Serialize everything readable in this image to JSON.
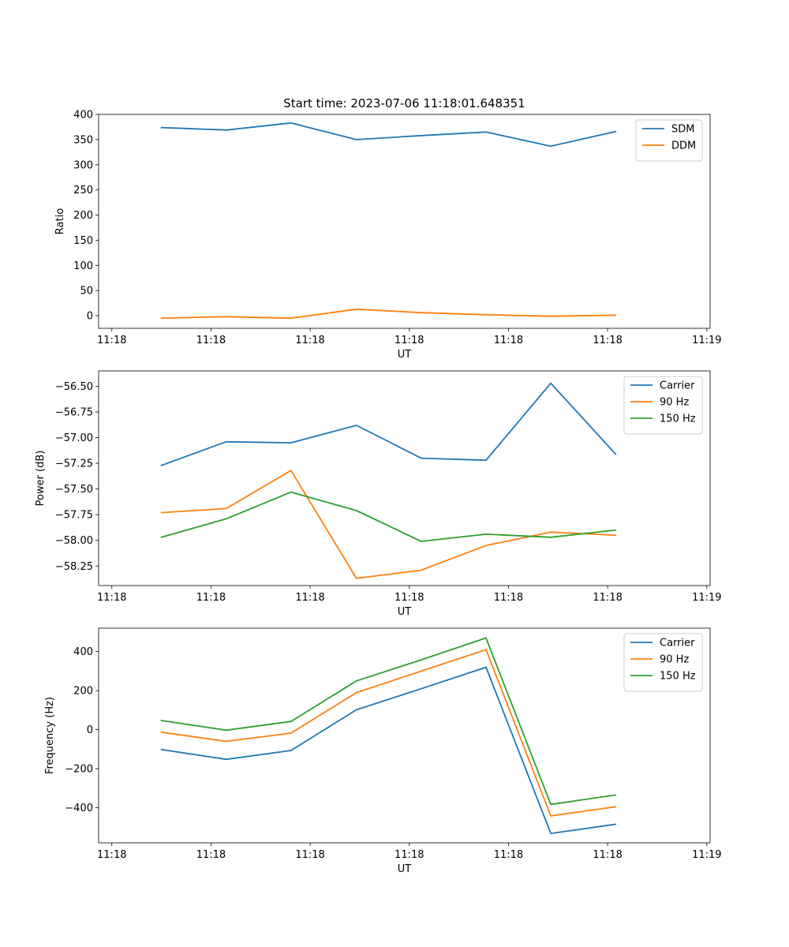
{
  "figure_title": "Start time: 2023-07-06 11:18:01.648351",
  "colors": {
    "blue": "#1f77b4",
    "orange": "#ff7f0e",
    "green": "#2ca02c",
    "frame": "#000000"
  },
  "chart_data": [
    {
      "type": "line",
      "title": "Start time: 2023-07-06 11:18:01.648351",
      "xlabel": "UT",
      "ylabel": "Ratio",
      "xlim": [
        -0.2,
        9.05
      ],
      "ylim": [
        -25,
        400
      ],
      "xticks": [
        {
          "v": 0,
          "label": "11:18"
        },
        {
          "v": 1.5,
          "label": "11:18"
        },
        {
          "v": 3,
          "label": "11:18"
        },
        {
          "v": 4.5,
          "label": "11:18"
        },
        {
          "v": 6,
          "label": "11:18"
        },
        {
          "v": 7.5,
          "label": "11:18"
        },
        {
          "v": 9,
          "label": "11:19"
        }
      ],
      "yticks": [
        {
          "v": 0,
          "label": "0"
        },
        {
          "v": 50,
          "label": "50"
        },
        {
          "v": 100,
          "label": "100"
        },
        {
          "v": 150,
          "label": "150"
        },
        {
          "v": 200,
          "label": "200"
        },
        {
          "v": 250,
          "label": "250"
        },
        {
          "v": 300,
          "label": "300"
        },
        {
          "v": 350,
          "label": "350"
        },
        {
          "v": 400,
          "label": "400"
        }
      ],
      "x": [
        0.75,
        1.73,
        2.71,
        3.7,
        4.68,
        5.66,
        6.64,
        7.62
      ],
      "legend": "upper right",
      "series": [
        {
          "name": "SDM",
          "color": "#1f77b4",
          "values": [
            374,
            369,
            383,
            350,
            358,
            365,
            337,
            366
          ]
        },
        {
          "name": "DDM",
          "color": "#ff7f0e",
          "values": [
            -5,
            -2,
            -5,
            13,
            6,
            2,
            -1,
            1
          ]
        }
      ]
    },
    {
      "type": "line",
      "title": "",
      "xlabel": "UT",
      "ylabel": "Power (dB)",
      "xlim": [
        -0.2,
        9.05
      ],
      "ylim": [
        -58.44,
        -56.35
      ],
      "xticks": [
        {
          "v": 0,
          "label": "11:18"
        },
        {
          "v": 1.5,
          "label": "11:18"
        },
        {
          "v": 3,
          "label": "11:18"
        },
        {
          "v": 4.5,
          "label": "11:18"
        },
        {
          "v": 6,
          "label": "11:18"
        },
        {
          "v": 7.5,
          "label": "11:18"
        },
        {
          "v": 9,
          "label": "11:19"
        }
      ],
      "yticks": [
        {
          "v": -58.25,
          "label": "−58.25"
        },
        {
          "v": -58.0,
          "label": "−58.00"
        },
        {
          "v": -57.75,
          "label": "−57.75"
        },
        {
          "v": -57.5,
          "label": "−57.50"
        },
        {
          "v": -57.25,
          "label": "−57.25"
        },
        {
          "v": -57.0,
          "label": "−57.00"
        },
        {
          "v": -56.75,
          "label": "−56.75"
        },
        {
          "v": -56.5,
          "label": "−56.50"
        }
      ],
      "x": [
        0.75,
        1.73,
        2.71,
        3.7,
        4.68,
        5.66,
        6.64,
        7.62
      ],
      "legend": "upper right",
      "series": [
        {
          "name": "Carrier",
          "color": "#1f77b4",
          "values": [
            -57.27,
            -57.04,
            -57.05,
            -56.88,
            -57.2,
            -57.22,
            -56.47,
            -57.16
          ]
        },
        {
          "name": "90 Hz",
          "color": "#ff7f0e",
          "values": [
            -57.73,
            -57.69,
            -57.32,
            -58.37,
            -58.29,
            -58.05,
            -57.92,
            -57.95
          ]
        },
        {
          "name": "150 Hz",
          "color": "#2ca02c",
          "values": [
            -57.97,
            -57.79,
            -57.53,
            -57.71,
            -58.01,
            -57.94,
            -57.97,
            -57.9
          ]
        }
      ]
    },
    {
      "type": "line",
      "title": "",
      "xlabel": "UT",
      "ylabel": "Frequency (Hz)",
      "xlim": [
        -0.2,
        9.05
      ],
      "ylim": [
        -580,
        520
      ],
      "xticks": [
        {
          "v": 0,
          "label": "11:18"
        },
        {
          "v": 1.5,
          "label": "11:18"
        },
        {
          "v": 3,
          "label": "11:18"
        },
        {
          "v": 4.5,
          "label": "11:18"
        },
        {
          "v": 6,
          "label": "11:18"
        },
        {
          "v": 7.5,
          "label": "11:18"
        },
        {
          "v": 9,
          "label": "11:19"
        }
      ],
      "yticks": [
        {
          "v": -400,
          "label": "−400"
        },
        {
          "v": -200,
          "label": "−200"
        },
        {
          "v": 0,
          "label": "0"
        },
        {
          "v": 200,
          "label": "200"
        },
        {
          "v": 400,
          "label": "400"
        }
      ],
      "x": [
        0.75,
        1.73,
        2.71,
        3.7,
        4.68,
        5.66,
        6.64,
        7.62
      ],
      "legend": "upper right",
      "series": [
        {
          "name": "Carrier",
          "color": "#1f77b4",
          "values": [
            -102,
            -152,
            -107,
            102,
            210,
            320,
            -532,
            -485
          ]
        },
        {
          "name": "90 Hz",
          "color": "#ff7f0e",
          "values": [
            -13,
            -60,
            -18,
            190,
            300,
            410,
            -442,
            -395
          ]
        },
        {
          "name": "150 Hz",
          "color": "#2ca02c",
          "values": [
            47,
            -3,
            42,
            250,
            358,
            470,
            -383,
            -335
          ]
        }
      ]
    }
  ]
}
